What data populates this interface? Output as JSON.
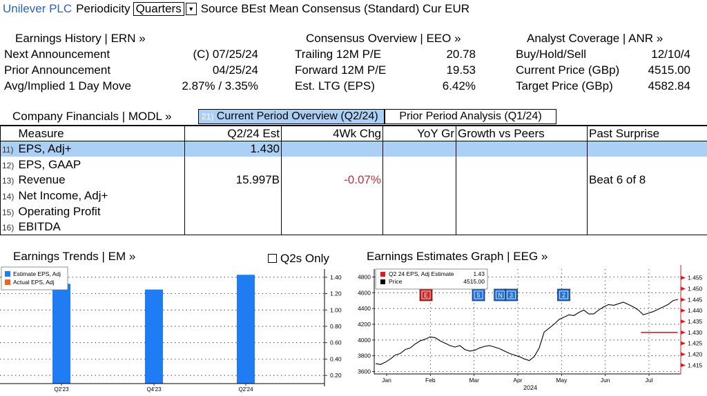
{
  "header": {
    "company": "Unilever PLC",
    "periodicity_label": "Periodicity",
    "periodicity_value": "Quarters",
    "source_text": "Source BEst Mean Consensus (Standard) Cur EUR"
  },
  "earnings_history": {
    "title": "Earnings History | ERN »",
    "rows": [
      {
        "label": "Next Announcement",
        "value": "(C)  07/25/24"
      },
      {
        "label": "Prior Announcement",
        "value": "04/25/24"
      },
      {
        "label": "Avg/Implied 1 Day Move",
        "value": "2.87% / 3.35%"
      }
    ]
  },
  "consensus": {
    "title": "Consensus Overview | EEO »",
    "rows": [
      {
        "label": "Trailing 12M P/E",
        "value": "20.78"
      },
      {
        "label": "Forward 12M P/E",
        "value": "19.53"
      },
      {
        "label": "Est. LTG (EPS)",
        "value": "6.42%"
      }
    ]
  },
  "analyst": {
    "title": "Analyst Coverage | ANR »",
    "rows": [
      {
        "label": "Buy/Hold/Sell",
        "value": "12/10/4"
      },
      {
        "label": "Current Price (GBp)",
        "value": "4515.00"
      },
      {
        "label": "Target Price (GBp)",
        "value": "4582.84"
      }
    ]
  },
  "financials": {
    "title": "Company Financials | MODL »",
    "tab_active_num": "21)",
    "tab_active": "Current Period Overview (Q2/24)",
    "tab_inactive": "Prior Period Analysis (Q1/24)",
    "columns": [
      "Measure",
      "Q2/24 Est",
      "4Wk Chg",
      "YoY Gr",
      "Growth vs Peers",
      "Past Surprise"
    ],
    "rows": [
      {
        "num": "11)",
        "measure": "EPS, Adj+",
        "est": "1.430",
        "chg": "",
        "yoy": "",
        "peers": "",
        "surprise": ""
      },
      {
        "num": "12)",
        "measure": "EPS, GAAP",
        "est": "",
        "chg": "",
        "yoy": "",
        "peers": "",
        "surprise": ""
      },
      {
        "num": "13)",
        "measure": "Revenue",
        "est": "15.997B",
        "chg": "-0.07%",
        "yoy": "",
        "peers": "",
        "surprise": "Beat 6 of 8"
      },
      {
        "num": "14)",
        "measure": "Net Income, Adj+",
        "est": "",
        "chg": "",
        "yoy": "",
        "peers": "",
        "surprise": ""
      },
      {
        "num": "15)",
        "measure": "Operating Profit",
        "est": "",
        "chg": "",
        "yoy": "",
        "peers": "",
        "surprise": ""
      },
      {
        "num": "16)",
        "measure": "EBITDA",
        "est": "",
        "chg": "",
        "yoy": "",
        "peers": "",
        "surprise": ""
      }
    ]
  },
  "trends": {
    "title": "Earnings Trends | EM »",
    "checkbox_label": "Q2s Only",
    "legend": [
      {
        "name": "Estimate EPS, Adj",
        "color": "#1f7cf2"
      },
      {
        "name": "Actual EPS, Adj",
        "color": "#f0641e"
      }
    ]
  },
  "estimates": {
    "title": "Earnings Estimates Graph | EEG »",
    "legend": [
      {
        "name": "Q2 24 EPS, Adj Estimate",
        "value": "1.43",
        "color": "#e31a1c"
      },
      {
        "name": "Price",
        "value": "4515.00",
        "color": "#000000"
      }
    ],
    "events": [
      "E",
      "5",
      "N",
      "3",
      "2"
    ],
    "year_label": "2024"
  },
  "chart_data": [
    {
      "type": "bar",
      "categories": [
        "Q2'23",
        "Q4'23",
        "Q2'24"
      ],
      "series": [
        {
          "name": "Estimate EPS, Adj",
          "values": [
            1.32,
            1.25,
            1.43
          ]
        }
      ],
      "ylim": [
        0.1,
        1.5
      ],
      "yticks": [
        "0.20",
        "0.40",
        "0.60",
        "0.80",
        "1.00",
        "1.20",
        "1.40"
      ],
      "grid": true,
      "legend_position": "top-left"
    },
    {
      "type": "line",
      "x_labels": [
        "Jan",
        "Feb",
        "Mar",
        "Apr",
        "May",
        "Jun",
        "Jul"
      ],
      "left_ylim": [
        3570,
        4900
      ],
      "left_yticks": [
        "3600",
        "3800",
        "4000",
        "4200",
        "4400",
        "4600",
        "4800"
      ],
      "right_ylim": [
        1.411,
        1.459
      ],
      "right_yticks": [
        "1.415",
        "1.420",
        "1.425",
        "1.430",
        "1.435",
        "1.440",
        "1.445",
        "1.450",
        "1.455"
      ],
      "series": [
        {
          "name": "Price",
          "axis": "left",
          "color": "#000000",
          "values": [
            3700,
            3690,
            3720,
            3760,
            3810,
            3830,
            3880,
            3900,
            3950,
            3990,
            4010,
            4040,
            4030,
            3990,
            3960,
            3930,
            3910,
            3930,
            3880,
            3860,
            3870,
            3900,
            3920,
            3930,
            3910,
            3890,
            3860,
            3830,
            3810,
            3790,
            3760,
            3740,
            3790,
            3900,
            4100,
            4150,
            4200,
            4260,
            4290,
            4320,
            4310,
            4350,
            4380,
            4330,
            4330,
            4380,
            4420,
            4450,
            4440,
            4460,
            4480,
            4450,
            4420,
            4380,
            4320,
            4340,
            4360,
            4390,
            4420,
            4450,
            4500,
            4515
          ]
        },
        {
          "name": "Q2 24 EPS, Adj Estimate",
          "axis": "right",
          "color": "#e31a1c",
          "x_range": [
            0.87,
            0.99
          ],
          "values": [
            1.43,
            1.43
          ]
        }
      ],
      "event_markers": [
        {
          "label": "E",
          "color": "#cc2222",
          "month_index": 0.9
        },
        {
          "label": "5",
          "color": "#1f6fe0",
          "month_index": 2.1
        },
        {
          "label": "N",
          "color": "#1f6fe0",
          "month_index": 2.6
        },
        {
          "label": "3",
          "color": "#1f6fe0",
          "month_index": 2.85
        },
        {
          "label": "2",
          "color": "#1f6fe0",
          "month_index": 4.05
        }
      ],
      "legend_position": "top-left"
    }
  ]
}
